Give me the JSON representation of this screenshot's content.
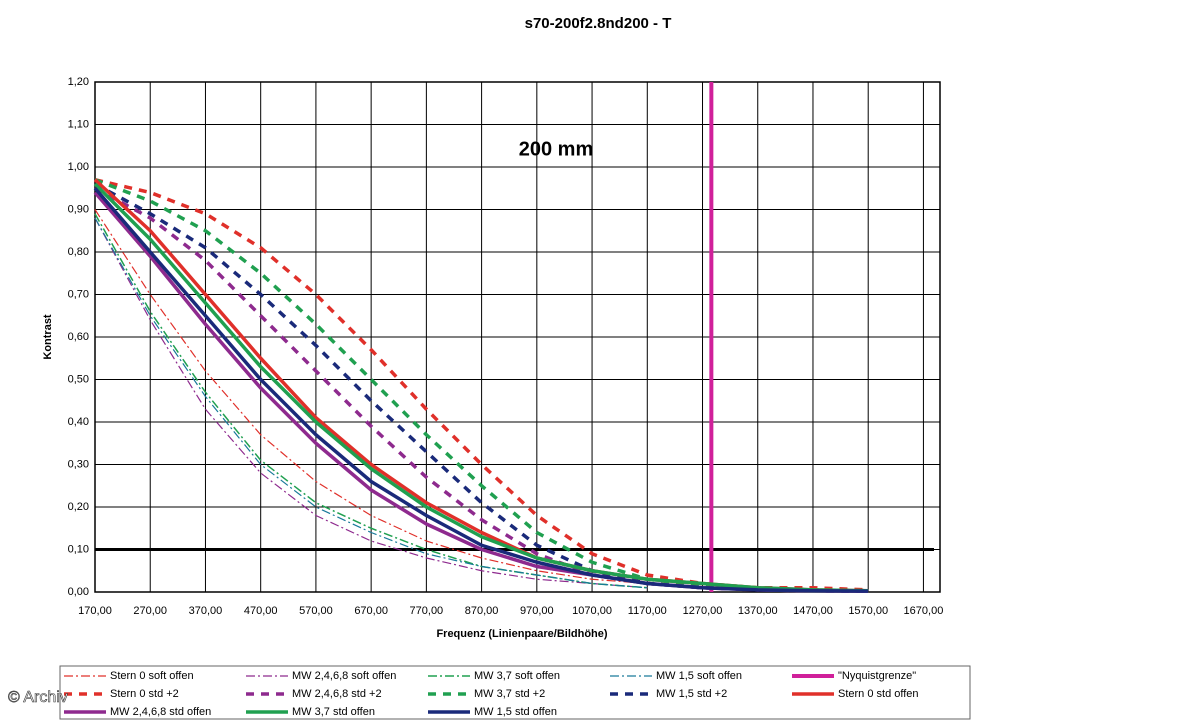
{
  "chart_data": {
    "type": "line",
    "title": "s70-200f2.8nd200 - T",
    "annotation": "200 mm",
    "x_label": "Frequenz (Linienpaare/Bildhöhe)",
    "y_label": "Kontrast",
    "watermark": "© Archiv",
    "grid": true,
    "legend": "bottom",
    "hline": 0.1,
    "hline_color": "#000000",
    "xlim": [
      170,
      1700
    ],
    "ylim": [
      0,
      1.2
    ],
    "xticks": [
      {
        "value": 170,
        "label": "170,00"
      },
      {
        "value": 270,
        "label": "270,00"
      },
      {
        "value": 370,
        "label": "370,00"
      },
      {
        "value": 470,
        "label": "470,00"
      },
      {
        "value": 570,
        "label": "570,00"
      },
      {
        "value": 670,
        "label": "670,00"
      },
      {
        "value": 770,
        "label": "770,00"
      },
      {
        "value": 870,
        "label": "870,00"
      },
      {
        "value": 970,
        "label": "970,00"
      },
      {
        "value": 1070,
        "label": "1070,00"
      },
      {
        "value": 1170,
        "label": "1170,00"
      },
      {
        "value": 1270,
        "label": "1270,00"
      },
      {
        "value": 1370,
        "label": "1370,00"
      },
      {
        "value": 1470,
        "label": "1470,00"
      },
      {
        "value": 1570,
        "label": "1570,00"
      },
      {
        "value": 1670,
        "label": "1670,00"
      }
    ],
    "yticks": [
      {
        "value": 0,
        "label": "0,00"
      },
      {
        "value": 0.1,
        "label": "0,10"
      },
      {
        "value": 0.2,
        "label": "0,20"
      },
      {
        "value": 0.3,
        "label": "0,30"
      },
      {
        "value": 0.4,
        "label": "0,40"
      },
      {
        "value": 0.5,
        "label": "0,50"
      },
      {
        "value": 0.6,
        "label": "0,60"
      },
      {
        "value": 0.7,
        "label": "0,70"
      },
      {
        "value": 0.8,
        "label": "0,80"
      },
      {
        "value": 0.9,
        "label": "0,90"
      },
      {
        "value": 1,
        "label": "1,00"
      },
      {
        "value": 1.1,
        "label": "1,10"
      },
      {
        "value": 1.2,
        "label": "1,20"
      }
    ],
    "x": [
      170,
      270,
      370,
      470,
      570,
      670,
      770,
      870,
      970,
      1070,
      1170,
      1270,
      1370,
      1470,
      1570
    ],
    "series": [
      {
        "name": "Stern 0 soft offen",
        "color": "#e0302a",
        "style": "dash-dot",
        "width": 1.2,
        "values": [
          0.9,
          0.7,
          0.52,
          0.37,
          0.26,
          0.18,
          0.12,
          0.08,
          0.05,
          0.03,
          0.02,
          null,
          null,
          null,
          null
        ]
      },
      {
        "name": "MW 2,4,6,8 soft offen",
        "color": "#8e2a8e",
        "style": "dash-dot",
        "width": 1.2,
        "values": [
          0.88,
          0.64,
          0.43,
          0.28,
          0.18,
          0.12,
          0.08,
          0.05,
          0.03,
          0.02,
          0.01,
          null,
          null,
          null,
          null
        ]
      },
      {
        "name": "MW 3,7 soft offen",
        "color": "#20a050",
        "style": "dash-dot",
        "width": 1.5,
        "values": [
          0.89,
          0.66,
          0.47,
          0.31,
          0.21,
          0.15,
          0.1,
          0.06,
          0.04,
          0.02,
          0.01,
          null,
          null,
          null,
          null
        ]
      },
      {
        "name": "MW 1,5 soft offen",
        "color": "#1a7a9a",
        "style": "dash-dot",
        "width": 1.2,
        "values": [
          0.88,
          0.65,
          0.46,
          0.3,
          0.2,
          0.14,
          0.09,
          0.06,
          0.04,
          0.02,
          0.01,
          null,
          null,
          null,
          null
        ]
      },
      {
        "name": "\"Nyquistgrenze\"",
        "color": "#d0209a",
        "style": "solid",
        "width": 4,
        "x": [
          1286,
          1286
        ],
        "values": [
          0,
          1.2
        ]
      },
      {
        "name": "Stern 0 std +2",
        "color": "#e0302a",
        "style": "dashed",
        "width": 3.5,
        "values": [
          0.97,
          0.94,
          0.89,
          0.81,
          0.7,
          0.57,
          0.43,
          0.3,
          0.18,
          0.09,
          0.04,
          0.02,
          0.01,
          0.01,
          0.005
        ]
      },
      {
        "name": "MW 2,4,6,8 std +2",
        "color": "#8e2a8e",
        "style": "dashed",
        "width": 3.5,
        "values": [
          0.95,
          0.88,
          0.78,
          0.65,
          0.52,
          0.39,
          0.27,
          0.17,
          0.09,
          0.04,
          0.02,
          0.01,
          0.005,
          0.003,
          0.002
        ]
      },
      {
        "name": "MW 3,7 std +2",
        "color": "#20a050",
        "style": "dashed",
        "width": 3.5,
        "values": [
          0.97,
          0.92,
          0.85,
          0.75,
          0.63,
          0.5,
          0.37,
          0.25,
          0.14,
          0.07,
          0.03,
          0.015,
          0.01,
          0.005,
          0.003
        ]
      },
      {
        "name": "MW 1,5 std +2",
        "color": "#1a2a7a",
        "style": "dashed",
        "width": 3.5,
        "values": [
          0.96,
          0.89,
          0.81,
          0.7,
          0.58,
          0.45,
          0.33,
          0.21,
          0.11,
          0.05,
          0.02,
          0.01,
          0.005,
          0.003,
          0.002
        ]
      },
      {
        "name": "Stern 0 std offen",
        "color": "#e0302a",
        "style": "solid",
        "width": 3.5,
        "values": [
          0.97,
          0.85,
          0.7,
          0.55,
          0.41,
          0.3,
          0.21,
          0.14,
          0.08,
          0.05,
          0.03,
          0.02,
          0.01,
          0.005,
          0.003
        ]
      },
      {
        "name": "MW 2,4,6,8 std offen",
        "color": "#8e2a8e",
        "style": "solid",
        "width": 3.5,
        "values": [
          0.94,
          0.79,
          0.63,
          0.48,
          0.35,
          0.24,
          0.16,
          0.1,
          0.06,
          0.04,
          0.02,
          0.01,
          0.005,
          0.003,
          0.002
        ]
      },
      {
        "name": "MW 3,7 std offen",
        "color": "#20a050",
        "style": "solid",
        "width": 3.5,
        "values": [
          0.96,
          0.83,
          0.68,
          0.53,
          0.4,
          0.29,
          0.2,
          0.13,
          0.08,
          0.05,
          0.03,
          0.02,
          0.01,
          0.005,
          0.003
        ]
      },
      {
        "name": "MW 1,5 std offen",
        "color": "#1a2a7a",
        "style": "solid",
        "width": 3.5,
        "values": [
          0.95,
          0.8,
          0.65,
          0.5,
          0.37,
          0.26,
          0.18,
          0.11,
          0.07,
          0.04,
          0.02,
          0.01,
          0.005,
          0.003,
          0.002
        ]
      }
    ]
  }
}
